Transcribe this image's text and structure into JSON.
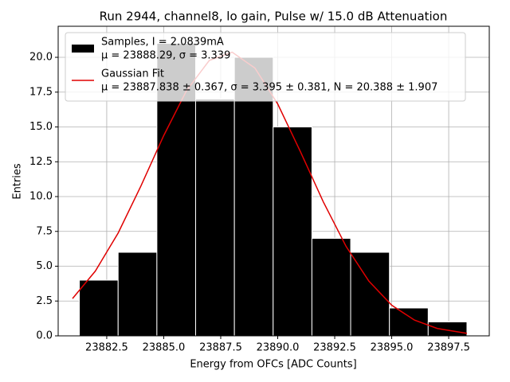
{
  "chart_data": {
    "type": "histogram",
    "title": "Run 2944, channel8, lo gain, Pulse w/ 15.0 dB Attenuation",
    "xlabel": "Energy from OFCs [ADC Counts]",
    "ylabel": "Entries",
    "bins": [
      23881.3,
      23883.0,
      23884.7,
      23886.4,
      23888.1,
      23889.8,
      23891.5,
      23893.2,
      23894.9,
      23896.6,
      23898.3
    ],
    "series": [
      {
        "name": "Samples, I = 2.0839mA",
        "detail": "μ = 23888.29, σ = 3.339",
        "color": "#000000",
        "values": [
          4,
          6,
          21,
          17,
          20,
          15,
          7,
          6,
          2,
          1
        ]
      },
      {
        "name": "Gaussian Fit",
        "detail": "μ = 23887.838 ± 0.367, σ = 3.395 ± 0.381, N = 20.388 ± 1.907",
        "color": "#e00000",
        "x": [
          23881,
          23882,
          23883,
          23884,
          23885,
          23886,
          23887,
          23888,
          23889,
          23890,
          23891,
          23892,
          23893,
          23894,
          23895,
          23896,
          23897,
          23898.3
        ],
        "values": [
          2.68,
          4.65,
          7.38,
          10.76,
          14.38,
          17.61,
          19.78,
          20.37,
          19.23,
          16.65,
          13.21,
          9.62,
          6.42,
          3.93,
          2.2,
          1.13,
          0.53,
          0.18
        ]
      }
    ],
    "xlim": [
      23880.37,
      23899.28
    ],
    "ylim": [
      0,
      22.23
    ],
    "xticks": [
      23882.5,
      {
        "value": 23885,
        "label": "23885.0"
      },
      23887.5,
      {
        "value": 23890,
        "label": "23890.0"
      },
      23892.5,
      {
        "value": 23895,
        "label": "23895.0"
      },
      23897.5
    ],
    "yticks": [
      {
        "value": 0,
        "label": "0.0"
      },
      2.5,
      {
        "value": 5,
        "label": "5.0"
      },
      7.5,
      {
        "value": 10,
        "label": "10.0"
      },
      12.5,
      {
        "value": 15,
        "label": "15.0"
      },
      17.5,
      {
        "value": 20,
        "label": "20.0"
      }
    ],
    "grid": true,
    "legend": "upper left"
  }
}
